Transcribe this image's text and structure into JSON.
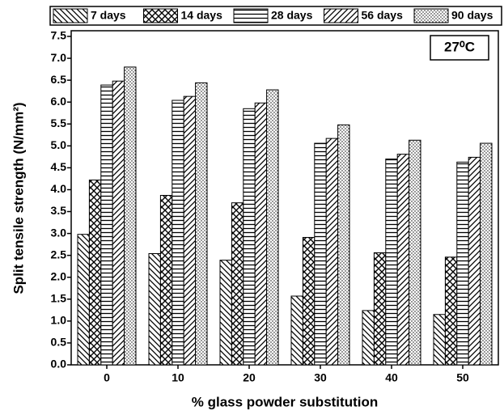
{
  "chart_data": {
    "type": "bar",
    "x_label": "% glass powder substitution",
    "y_label": "Split tensile strength (N/mm²)",
    "annotation": "27⁰C",
    "categories": [
      "0",
      "10",
      "20",
      "30",
      "40",
      "50"
    ],
    "series": [
      {
        "name": "7 days",
        "color": "#000000",
        "pattern": "backslash",
        "values": [
          2.98,
          2.54,
          2.39,
          1.57,
          1.24,
          1.15
        ]
      },
      {
        "name": "14 days",
        "color": "#000000",
        "pattern": "cross",
        "values": [
          4.22,
          3.87,
          3.7,
          2.91,
          2.56,
          2.46
        ]
      },
      {
        "name": "28 days",
        "color": "#000000",
        "pattern": "horizontal",
        "values": [
          6.39,
          6.04,
          5.85,
          5.06,
          4.7,
          4.63
        ]
      },
      {
        "name": "56 days",
        "color": "#000000",
        "pattern": "slash",
        "values": [
          6.48,
          6.13,
          5.98,
          5.17,
          4.81,
          4.74
        ]
      },
      {
        "name": "90 days",
        "color": "#000000",
        "pattern": "dots",
        "values": [
          6.8,
          6.44,
          6.28,
          5.48,
          5.13,
          5.06
        ]
      }
    ],
    "ylim": [
      0,
      7.5
    ],
    "yticks": [
      {
        "value": 0,
        "label": "0.0"
      },
      0.5,
      {
        "value": 1,
        "label": "1.0"
      },
      1.5,
      {
        "value": 2,
        "label": "2.0"
      },
      2.5,
      {
        "value": 3,
        "label": "3.0"
      },
      3.5,
      {
        "value": 4,
        "label": "4.0"
      },
      4.5,
      {
        "value": 5,
        "label": "5.0"
      },
      5.5,
      {
        "value": 6,
        "label": "6.0"
      },
      6.5,
      {
        "value": 7,
        "label": "7.0"
      },
      7.5
    ],
    "grid": false,
    "legend": "top"
  }
}
